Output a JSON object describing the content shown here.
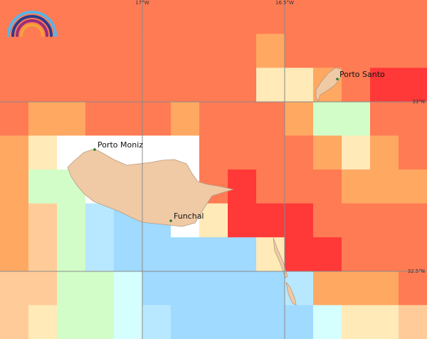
{
  "map": {
    "graticule": {
      "lon_labels": [
        "17°W",
        "16.5°W"
      ],
      "lat_labels": [
        "33°N",
        "32.5°N"
      ]
    },
    "places": [
      {
        "name": "Porto Santo"
      },
      {
        "name": "Porto Moniz"
      },
      {
        "name": "Funchal"
      }
    ]
  }
}
